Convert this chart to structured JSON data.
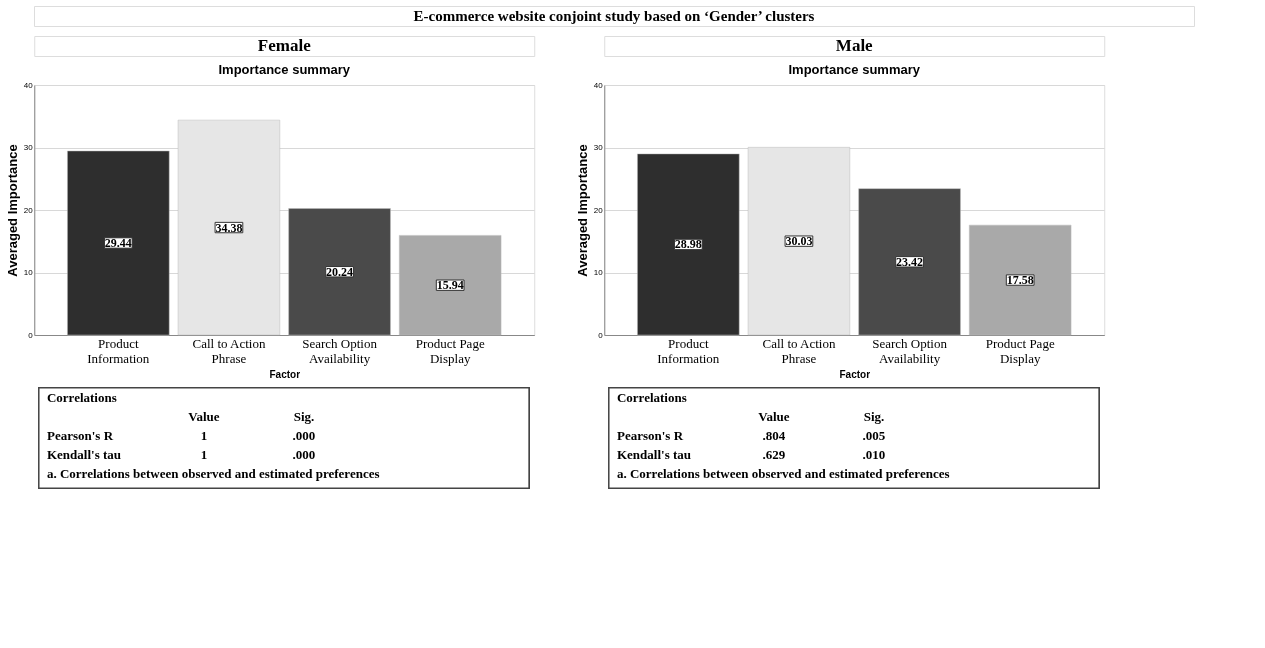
{
  "chart_data": [
    {
      "type": "bar",
      "title": "Importance summary",
      "subtitle": "Female",
      "xlabel": "Factor",
      "ylabel": "Averaged Importance",
      "categories": [
        "Product Information",
        "Call to Action Phrase",
        "Search Option Availability",
        "Product Page Display"
      ],
      "values": [
        29.44,
        34.38,
        20.24,
        15.94
      ],
      "colors": [
        "#2e2e2e",
        "#e6e6e6",
        "#4a4a4a",
        "#a9a9a9"
      ],
      "ylim": [
        0,
        40
      ],
      "yticks": [
        0,
        10,
        20,
        30,
        40
      ],
      "grid": "y",
      "data_labels": true,
      "legend": false,
      "annotations": [
        "E-commerce website conjoint study based on ‘Gender’ clusters",
        "Correlations",
        "\tValue\tSig.",
        "Pearson's R\t1\t.000",
        "Kendall's tau\t1\t.000",
        "a. Correlations between observed and estimated preferences"
      ]
    },
    {
      "type": "bar",
      "title": "Importance summary",
      "subtitle": "Male",
      "xlabel": "Factor",
      "ylabel": "Averaged Importance",
      "categories": [
        "Product Information",
        "Call to Action Phrase",
        "Search Option Availability",
        "Product Page Display"
      ],
      "values": [
        28.98,
        30.03,
        23.42,
        17.58
      ],
      "colors": [
        "#2e2e2e",
        "#e6e6e6",
        "#4a4a4a",
        "#a9a9a9"
      ],
      "ylim": [
        0,
        40
      ],
      "yticks": [
        0,
        10,
        20,
        30,
        40
      ],
      "grid": "y",
      "data_labels": true,
      "legend": false,
      "annotations": [
        "Correlations",
        "\tValue\tSig.",
        "Pearson's R\t.804\t.005",
        "Kendall's tau\t.629\t.010",
        "a. Correlations between observed and estimated preferences"
      ]
    }
  ]
}
